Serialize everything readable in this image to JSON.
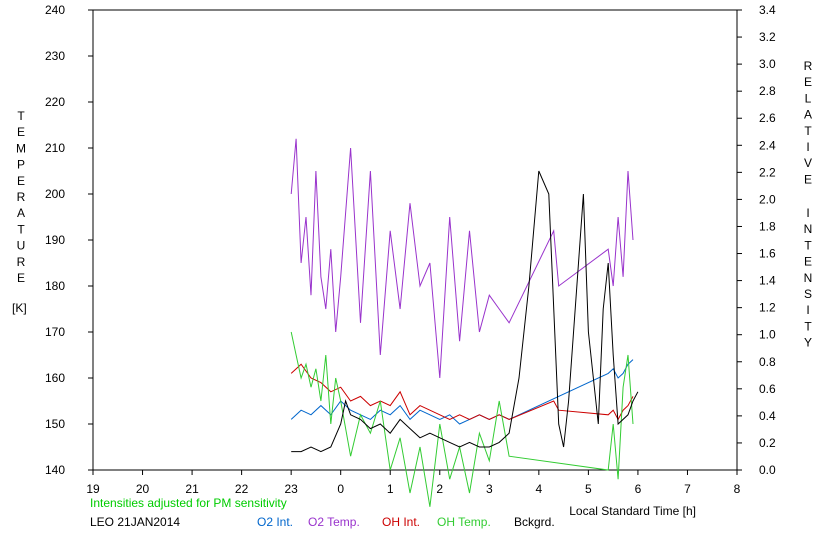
{
  "chart_data": {
    "type": "line",
    "left_axis": {
      "label_letters": [
        "T",
        "E",
        "M",
        "P",
        "E",
        "R",
        "A",
        "T",
        "U",
        "R",
        "E"
      ],
      "unit": "[K]",
      "ticks": [
        "240",
        "230",
        "220",
        "210",
        "200",
        "190",
        "180",
        "170",
        "160",
        "150",
        "140"
      ],
      "range": [
        140,
        240
      ]
    },
    "right_axis": {
      "label_word1": [
        "R",
        "E",
        "L",
        "A",
        "T",
        "I",
        "V",
        "E"
      ],
      "label_word2": [
        "I",
        "N",
        "T",
        "E",
        "N",
        "S",
        "I",
        "T",
        "Y"
      ],
      "ticks": [
        "3.4",
        "3.2",
        "3.0",
        "2.8",
        "2.6",
        "2.4",
        "2.2",
        "2.0",
        "1.8",
        "1.6",
        "1.4",
        "1.2",
        "1.0",
        "0.8",
        "0.6",
        "0.4",
        "0.2",
        "0.0"
      ],
      "range": [
        0,
        3.4
      ]
    },
    "x_axis": {
      "ticks": [
        "19",
        "20",
        "21",
        "22",
        "23",
        "0",
        "1",
        "2",
        "3",
        "4",
        "5",
        "6",
        "7",
        "8"
      ],
      "label": "Local Standard Time [h]",
      "range_hours": [
        19,
        32
      ]
    },
    "note": "Intensities adjusted for PM sensitivity",
    "station": "LEO 21JAN2014",
    "legend": [
      {
        "key": "o2int",
        "label": "O2 Int.",
        "color": "#0066cc"
      },
      {
        "key": "o2temp",
        "label": "O2 Temp.",
        "color": "#9933cc"
      },
      {
        "key": "ohint",
        "label": "OH Int.",
        "color": "#cc0000"
      },
      {
        "key": "ohtemp",
        "label": "OH Temp.",
        "color": "#33cc33"
      },
      {
        "key": "bkg",
        "label": "Bckgrd.",
        "color": "#000000"
      }
    ],
    "series": [
      {
        "key": "o2temp",
        "axis": "left",
        "x": [
          23.0,
          23.1,
          23.2,
          23.3,
          23.4,
          23.5,
          23.6,
          23.7,
          23.8,
          23.9,
          24.0,
          24.2,
          24.4,
          24.6,
          24.8,
          25.0,
          25.2,
          25.4,
          25.6,
          25.8,
          26.0,
          26.2,
          26.4,
          26.6,
          26.8,
          27.0,
          27.2,
          27.4,
          28.3,
          28.4,
          29.4,
          29.5,
          29.6,
          29.7,
          29.8,
          29.9
        ],
        "y": [
          200,
          212,
          185,
          195,
          178,
          205,
          182,
          175,
          188,
          170,
          182,
          210,
          172,
          205,
          165,
          192,
          175,
          198,
          180,
          185,
          160,
          195,
          168,
          192,
          170,
          178,
          175,
          172,
          192,
          180,
          188,
          180,
          195,
          182,
          205,
          190
        ]
      },
      {
        "key": "o2int",
        "axis": "left",
        "x": [
          23.0,
          23.2,
          23.4,
          23.6,
          23.8,
          24.0,
          24.2,
          24.4,
          24.6,
          24.8,
          25.0,
          25.2,
          25.4,
          25.6,
          25.8,
          26.0,
          26.2,
          26.4,
          26.6,
          26.8,
          27.0,
          27.2,
          27.4,
          29.4,
          29.5,
          29.6,
          29.7,
          29.8,
          29.9
        ],
        "y": [
          151,
          153,
          152,
          154,
          152,
          155,
          153,
          152,
          151,
          153,
          152,
          154,
          151,
          153,
          152,
          151,
          152,
          150,
          151,
          152,
          151,
          152,
          151,
          161,
          162,
          160,
          161,
          163,
          164
        ]
      },
      {
        "key": "ohint",
        "axis": "left",
        "x": [
          23.0,
          23.2,
          23.4,
          23.6,
          23.8,
          24.0,
          24.2,
          24.4,
          24.6,
          24.8,
          25.0,
          25.2,
          25.4,
          25.6,
          25.8,
          26.0,
          26.2,
          26.4,
          26.6,
          26.8,
          27.0,
          27.2,
          27.4,
          28.3,
          28.4,
          29.4,
          29.5,
          29.6,
          29.7,
          29.8,
          29.9
        ],
        "y": [
          161,
          163,
          160,
          159,
          157,
          158,
          155,
          156,
          154,
          155,
          154,
          157,
          152,
          154,
          153,
          152,
          151,
          152,
          151,
          152,
          151,
          152,
          151,
          155,
          153,
          152,
          153,
          151,
          153,
          154,
          156
        ]
      },
      {
        "key": "ohtemp",
        "axis": "left",
        "x": [
          23.0,
          23.1,
          23.2,
          23.3,
          23.4,
          23.5,
          23.6,
          23.7,
          23.8,
          23.9,
          24.0,
          24.2,
          24.4,
          24.6,
          24.8,
          25.0,
          25.2,
          25.4,
          25.6,
          25.8,
          26.0,
          26.2,
          26.4,
          26.6,
          26.8,
          27.0,
          27.2,
          27.4,
          29.4,
          29.5,
          29.6,
          29.7,
          29.8,
          29.9
        ],
        "y": [
          170,
          165,
          160,
          163,
          158,
          162,
          155,
          165,
          150,
          160,
          155,
          143,
          152,
          148,
          155,
          140,
          147,
          135,
          145,
          132,
          150,
          138,
          145,
          135,
          148,
          142,
          155,
          143,
          140,
          150,
          138,
          158,
          165,
          150
        ]
      },
      {
        "key": "bkg",
        "axis": "left",
        "x": [
          23.0,
          23.2,
          23.4,
          23.6,
          23.8,
          24.0,
          24.1,
          24.2,
          24.4,
          24.6,
          24.8,
          25.0,
          25.2,
          25.4,
          25.6,
          25.8,
          26.0,
          26.2,
          26.4,
          26.6,
          26.8,
          27.0,
          27.2,
          27.4,
          27.6,
          27.8,
          28.0,
          28.2,
          28.4,
          28.5,
          28.6,
          28.8,
          28.9,
          29.0,
          29.2,
          29.3,
          29.4,
          29.5,
          29.6,
          29.8,
          29.9,
          30.0
        ],
        "y": [
          144,
          144,
          145,
          144,
          145,
          150,
          155,
          152,
          151,
          149,
          150,
          148,
          151,
          149,
          147,
          148,
          147,
          146,
          145,
          146,
          145,
          145,
          146,
          148,
          160,
          180,
          205,
          200,
          150,
          145,
          155,
          185,
          200,
          170,
          150,
          175,
          185,
          165,
          150,
          152,
          155,
          157
        ]
      }
    ]
  }
}
